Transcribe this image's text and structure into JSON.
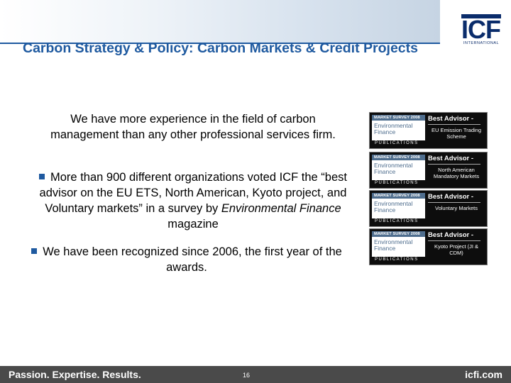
{
  "slide": {
    "title": "Carbon Strategy & Policy: Carbon Markets & Credit Projects",
    "lead": "We have more experience in the field of carbon management than any other professional services firm.",
    "bullets": [
      {
        "before": "More than 900 different organizations voted ICF the “best advisor on the EU ETS, North American, Kyoto project, and Voluntary markets” in a survey by ",
        "italic": "Environmental Finance",
        "after": " magazine"
      },
      {
        "before": "We have been recognized since 2006, the first year of the awards.",
        "italic": "",
        "after": ""
      }
    ]
  },
  "logo": {
    "letters": "ICF",
    "sub": "INTERNATIONAL"
  },
  "awards": [
    {
      "survey": "MARKET SURVEY 2008",
      "mag1": "Environmental",
      "mag2": "Finance",
      "pub": "PUBLICATIONS",
      "best": "Best Advisor -",
      "cat": "EU Emission Trading Scheme"
    },
    {
      "survey": "MARKET SURVEY 2008",
      "mag1": "Environmental",
      "mag2": "Finance",
      "pub": "PUBLICATIONS",
      "best": "Best Advisor -",
      "cat": "North American Mandatory Markets"
    },
    {
      "survey": "MARKET SURVEY 2008",
      "mag1": "Environmental",
      "mag2": "Finance",
      "pub": "PUBLICATIONS",
      "best": "Best Advisor -",
      "cat": "Voluntary Markets"
    },
    {
      "survey": "MARKET SURVEY 2008",
      "mag1": "Environmental",
      "mag2": "Finance",
      "pub": "PUBLICATIONS",
      "best": "Best Advisor -",
      "cat": "Kyoto Project (JI & CDM)"
    }
  ],
  "footer": {
    "tagline": "Passion. Expertise. Results.",
    "page": "16",
    "site": "icfi.com"
  },
  "colors": {
    "accent": "#1f5aa0",
    "logo": "#0a2c6b",
    "footer_bg": "#4a4a4a"
  }
}
